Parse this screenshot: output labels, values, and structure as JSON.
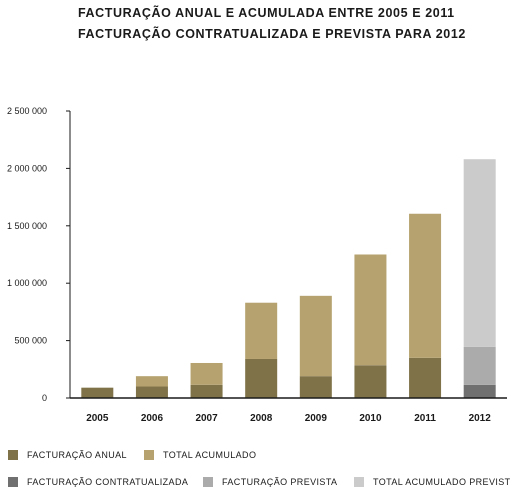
{
  "titles": {
    "line1": "FACTURAÇÃO ANUAL E ACUMULADA ENTRE 2005 E 2011",
    "line2": "FACTURAÇÃO CONTRATUALIZADA E PREVISTA PARA 2012"
  },
  "legend": [
    {
      "label": "FACTURAÇÃO ANUAL",
      "color": "#7f7249"
    },
    {
      "label": "TOTAL ACUMULADO",
      "color": "#b5a26e"
    },
    {
      "label": "FACTURAÇÃO CONTRATUALIZADA",
      "color": "#707070"
    },
    {
      "label": "FACTURAÇÃO PREVISTA",
      "color": "#ababab"
    },
    {
      "label": "TOTAL ACUMULADO PREVISTO",
      "color": "#cbcbcb"
    }
  ],
  "chart_data": {
    "type": "bar",
    "stacked": true,
    "categories": [
      "2005",
      "2006",
      "2007",
      "2008",
      "2009",
      "2010",
      "2011",
      "2012"
    ],
    "series": [
      {
        "name": "FACTURAÇÃO ANUAL",
        "color": "#7f7249",
        "values": [
          90000,
          100000,
          115000,
          340000,
          190000,
          285000,
          350000,
          null
        ]
      },
      {
        "name": "TOTAL ACUMULADO",
        "color": "#b5a26e",
        "values": [
          0,
          90000,
          190000,
          490000,
          700000,
          965000,
          1255000,
          null
        ]
      },
      {
        "name": "FACTURAÇÃO CONTRATUALIZADA",
        "color": "#707070",
        "values": [
          null,
          null,
          null,
          null,
          null,
          null,
          null,
          115000
        ]
      },
      {
        "name": "FACTURAÇÃO PREVISTA",
        "color": "#ababab",
        "values": [
          null,
          null,
          null,
          null,
          null,
          null,
          null,
          330000
        ]
      },
      {
        "name": "TOTAL ACUMULADO PREVISTO",
        "color": "#cbcbcb",
        "values": [
          null,
          null,
          null,
          null,
          null,
          null,
          null,
          1635000
        ]
      }
    ],
    "ylim": [
      0,
      2500000
    ],
    "yticks": [
      0,
      500000,
      1000000,
      1500000,
      2000000,
      2500000
    ],
    "ytick_labels": [
      "0",
      "500 000",
      "1 000 000",
      "1 500 000",
      "2 000 000",
      "2 500 000"
    ],
    "grid": false,
    "legend_position": "bottom"
  }
}
